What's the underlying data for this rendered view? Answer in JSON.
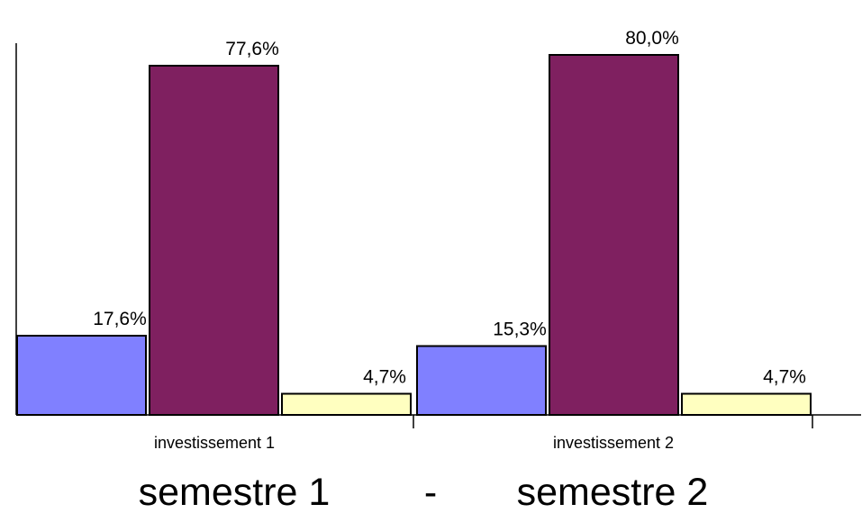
{
  "chart_data": {
    "type": "bar",
    "categories": [
      "investissement 1",
      "investissement 2"
    ],
    "series": [
      {
        "values": [
          17.6,
          15.3
        ],
        "labels": [
          "17,6%",
          "15,3%"
        ],
        "color": "#8080ff"
      },
      {
        "values": [
          77.6,
          80.0
        ],
        "labels": [
          "77,6%",
          "80,0%"
        ],
        "color": "#7f2060"
      },
      {
        "values": [
          4.7,
          4.7
        ],
        "labels": [
          "4,7%",
          "4,7%"
        ],
        "color": "#ffffc0"
      }
    ],
    "title": "",
    "xlabel": "",
    "ylabel": "",
    "ylim": [
      0,
      85
    ],
    "grid": false,
    "legend": "none"
  },
  "footer": {
    "left": "semestre 1",
    "separator": "-",
    "right": "semestre 2"
  }
}
